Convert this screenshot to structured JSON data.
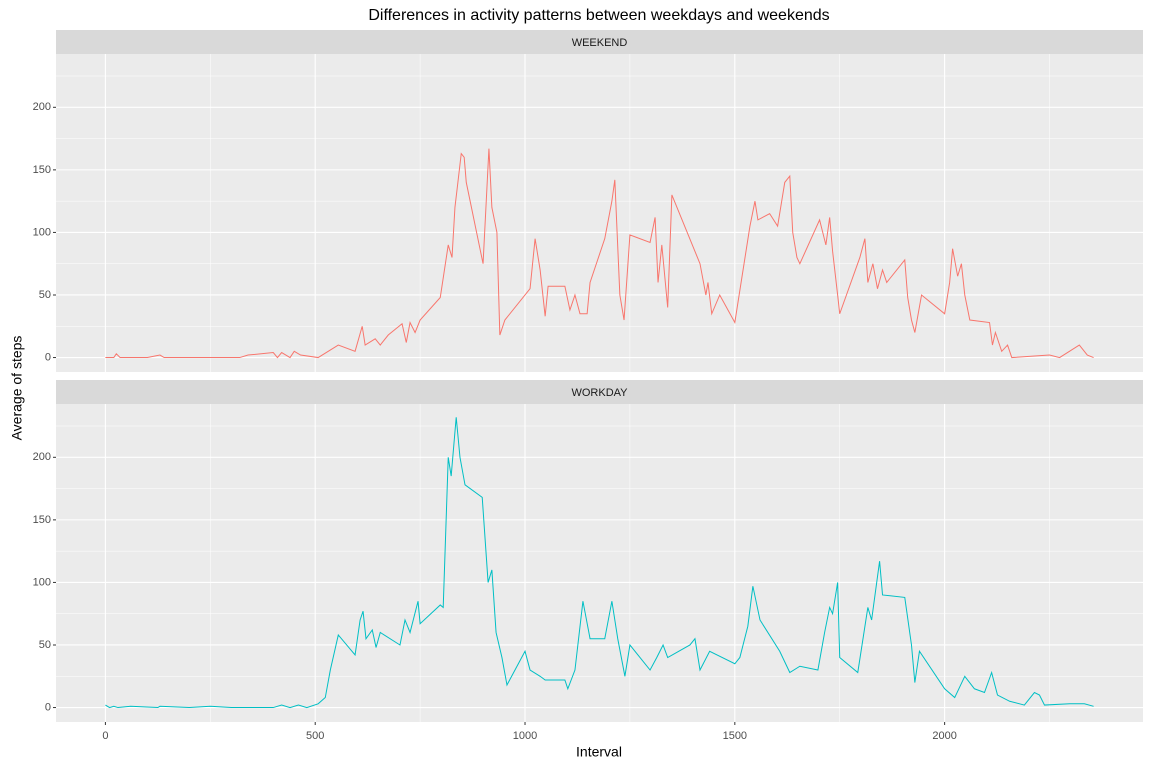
{
  "chart_data": {
    "type": "line",
    "title": "Differences in activity patterns between weekdays and weekends",
    "xlabel": "Interval",
    "ylabel": "Average of steps",
    "xlim": [
      -117.75,
      2472.75
    ],
    "ylim": [
      -11.55,
      242.6
    ],
    "xticks": [
      0,
      500,
      1000,
      1500,
      2000
    ],
    "yticks": [
      0,
      50,
      100,
      150,
      200
    ],
    "xminor": [
      250,
      750,
      1250,
      1750,
      2250
    ],
    "yminor": [
      25,
      75,
      125,
      175,
      225
    ],
    "grid": true,
    "series": [
      {
        "name": "WEEKEND",
        "color": "#f8766d",
        "x": [
          0,
          20,
          26,
          35,
          100,
          130,
          140,
          320,
          340,
          400,
          410,
          420,
          440,
          450,
          465,
          507,
          555,
          595,
          612,
          619,
          643,
          655,
          674,
          707,
          717,
          726,
          738,
          750,
          798,
          817,
          826,
          833,
          840,
          848,
          855,
          860,
          900,
          914,
          921,
          933,
          940,
          952,
          1012,
          1024,
          1036,
          1048,
          1055,
          1095,
          1107,
          1119,
          1131,
          1148,
          1155,
          1190,
          1207,
          1214,
          1226,
          1236,
          1250,
          1298,
          1310,
          1317,
          1326,
          1340,
          1350,
          1417,
          1431,
          1436,
          1445,
          1464,
          1500,
          1536,
          1548,
          1555,
          1583,
          1602,
          1619,
          1631,
          1638,
          1648,
          1655,
          1702,
          1717,
          1726,
          1733,
          1745,
          1750,
          1798,
          1810,
          1817,
          1829,
          1840,
          1852,
          1862,
          1905,
          1912,
          1921,
          1929,
          1945,
          2000,
          2012,
          2019,
          2031,
          2040,
          2048,
          2060,
          2107,
          2114,
          2121,
          2136,
          2150,
          2160,
          2250,
          2274,
          2321,
          2340,
          2355
        ],
        "values": [
          0,
          0,
          3,
          0,
          0,
          2,
          0,
          0,
          2,
          4,
          0,
          4,
          0,
          5,
          2,
          0,
          10,
          5,
          25,
          10,
          15,
          10,
          18,
          27,
          12,
          28,
          20,
          30,
          48,
          90,
          80,
          120,
          140,
          163,
          160,
          140,
          75,
          167,
          120,
          100,
          18,
          30,
          55,
          95,
          70,
          33,
          57,
          57,
          38,
          50,
          35,
          35,
          60,
          95,
          125,
          142,
          50,
          30,
          98,
          92,
          112,
          60,
          90,
          40,
          130,
          75,
          50,
          60,
          35,
          50,
          28,
          105,
          125,
          110,
          115,
          105,
          140,
          145,
          100,
          80,
          75,
          110,
          90,
          112,
          85,
          50,
          35,
          80,
          95,
          60,
          75,
          55,
          70,
          60,
          78,
          48,
          30,
          20,
          50,
          35,
          60,
          87,
          65,
          75,
          50,
          30,
          28,
          10,
          20,
          5,
          10,
          0,
          2,
          0,
          10,
          2,
          0
        ]
      },
      {
        "name": "WORKDAY",
        "color": "#00bfc4",
        "x": [
          0,
          10,
          20,
          30,
          60,
          125,
          130,
          200,
          250,
          300,
          400,
          420,
          440,
          460,
          480,
          507,
          524,
          536,
          555,
          595,
          607,
          614,
          621,
          636,
          645,
          655,
          702,
          714,
          726,
          745,
          750,
          798,
          805,
          817,
          824,
          836,
          845,
          857,
          898,
          912,
          921,
          931,
          945,
          957,
          1000,
          1012,
          1036,
          1048,
          1095,
          1102,
          1119,
          1138,
          1155,
          1190,
          1207,
          1221,
          1238,
          1250,
          1298,
          1314,
          1329,
          1340,
          1393,
          1405,
          1417,
          1440,
          1500,
          1512,
          1531,
          1543,
          1560,
          1607,
          1631,
          1655,
          1698,
          1714,
          1726,
          1733,
          1745,
          1750,
          1793,
          1817,
          1826,
          1845,
          1852,
          1905,
          1921,
          1929,
          1940,
          2000,
          2024,
          2048,
          2071,
          2095,
          2112,
          2126,
          2155,
          2190,
          2214,
          2226,
          2238,
          2298,
          2333,
          2355
        ],
        "values": [
          2,
          0,
          1,
          0,
          1,
          0,
          1,
          0,
          1,
          0,
          0,
          2,
          0,
          2,
          0,
          3,
          8,
          30,
          58,
          42,
          70,
          77,
          55,
          62,
          48,
          60,
          50,
          70,
          60,
          85,
          67,
          82,
          80,
          200,
          185,
          232,
          200,
          178,
          168,
          100,
          110,
          60,
          40,
          18,
          45,
          30,
          25,
          22,
          22,
          15,
          30,
          85,
          55,
          55,
          85,
          55,
          25,
          50,
          30,
          40,
          50,
          40,
          50,
          55,
          30,
          45,
          35,
          40,
          65,
          97,
          70,
          45,
          28,
          33,
          30,
          60,
          80,
          75,
          100,
          40,
          28,
          80,
          70,
          117,
          90,
          88,
          50,
          20,
          45,
          15,
          8,
          25,
          15,
          12,
          28,
          10,
          5,
          2,
          12,
          10,
          2,
          3,
          3,
          1
        ]
      }
    ]
  }
}
